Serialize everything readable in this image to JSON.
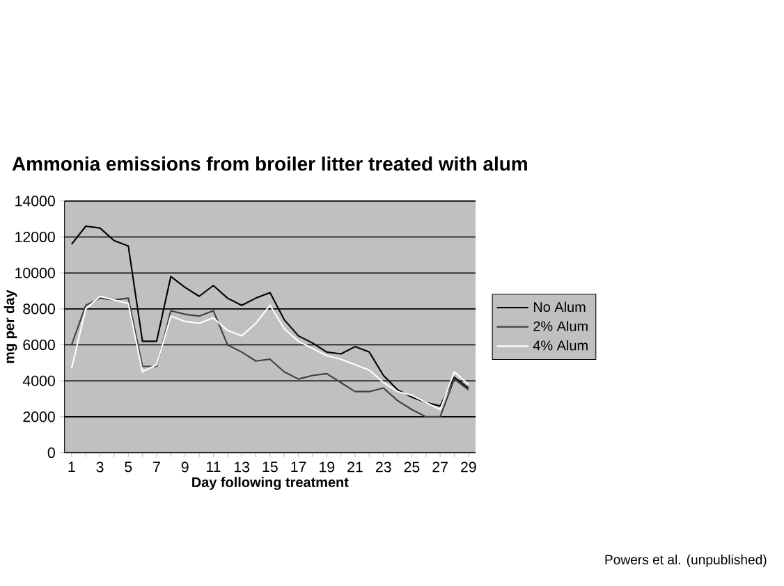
{
  "chart_data": {
    "type": "line",
    "title": "Ammonia emissions from broiler litter treated with alum",
    "xlabel": "Day following treatment",
    "ylabel": "mg per day",
    "categories": [
      "1",
      null,
      "3",
      null,
      "5",
      null,
      "7",
      null,
      "9",
      null,
      "11",
      null,
      "13",
      null,
      "15",
      null,
      "17",
      null,
      "19",
      null,
      "21",
      null,
      "23",
      null,
      "25",
      null,
      "27",
      null,
      "29"
    ],
    "series": [
      {
        "name": "No Alum",
        "color": "#000000",
        "values": [
          11600,
          12600,
          12500,
          11800,
          11500,
          6200,
          6200,
          9800,
          9200,
          8700,
          9300,
          8600,
          8200,
          8600,
          8900,
          7400,
          6500,
          6100,
          5600,
          5500,
          5900,
          5600,
          4300,
          3500,
          3100,
          2800,
          2600,
          4200,
          3600
        ]
      },
      {
        "name": "2% Alum",
        "color": "#404040",
        "values": [
          6000,
          8200,
          8600,
          8500,
          8600,
          4800,
          4800,
          7900,
          7700,
          7600,
          7900,
          6000,
          5600,
          5100,
          5200,
          4500,
          4100,
          4300,
          4400,
          3900,
          3400,
          3400,
          3600,
          2900,
          2400,
          2000,
          2000,
          4100,
          3500
        ]
      },
      {
        "name": "4% Alum",
        "color": "#ffffff",
        "values": [
          4700,
          8000,
          8700,
          8500,
          8300,
          4500,
          4900,
          7600,
          7300,
          7200,
          7500,
          6800,
          6500,
          7200,
          8200,
          6900,
          6200,
          5800,
          5400,
          5200,
          4900,
          4600,
          3900,
          3400,
          3200,
          2800,
          2400,
          4500,
          3800
        ]
      }
    ],
    "ylim": [
      0,
      14000
    ],
    "yticks": [
      0,
      2000,
      4000,
      6000,
      8000,
      10000,
      12000,
      14000
    ],
    "grid": "y",
    "legend": "right",
    "marker": "none",
    "line_style": "solid",
    "annotations": [
      "Powers et al. (unpublished)"
    ]
  }
}
